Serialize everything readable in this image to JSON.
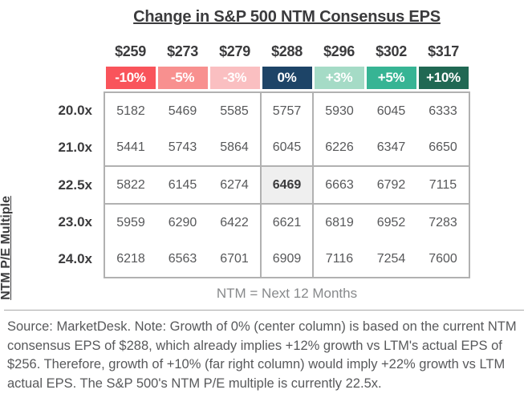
{
  "title": "Change in S&P 500 NTM Consensus EPS",
  "y_axis_label": "NTM P/E Multiple",
  "eps_headers": [
    "$259",
    "$273",
    "$279",
    "$288",
    "$296",
    "$302",
    "$317"
  ],
  "pct_headers": [
    "-10%",
    "-5%",
    "-3%",
    "0%",
    "+3%",
    "+5%",
    "+10%"
  ],
  "pct_colors": [
    "#f9545b",
    "#f8908f",
    "#fabfc1",
    "#1d4467",
    "#a5dbc6",
    "#37b494",
    "#206853"
  ],
  "rows": [
    {
      "label": "20.0x",
      "cells": [
        "5182",
        "5469",
        "5585",
        "5757",
        "5930",
        "6045",
        "6333"
      ]
    },
    {
      "label": "21.0x",
      "cells": [
        "5441",
        "5743",
        "5864",
        "6045",
        "6226",
        "6347",
        "6650"
      ]
    },
    {
      "label": "22.5x",
      "cells": [
        "5822",
        "6145",
        "6274",
        "6469",
        "6663",
        "6792",
        "7115"
      ]
    },
    {
      "label": "23.0x",
      "cells": [
        "5959",
        "6290",
        "6422",
        "6621",
        "6819",
        "6952",
        "7283"
      ]
    },
    {
      "label": "24.0x",
      "cells": [
        "6218",
        "6563",
        "6701",
        "6909",
        "7116",
        "7254",
        "7600"
      ]
    }
  ],
  "footnote": "NTM = Next 12 Months",
  "source_note": "Source: MarketDesk. Note: Growth of 0% (center column) is based on the current NTM consensus EPS of $288, which already implies +12% growth vs LTM's actual EPS of $256. Therefore, growth of +10% (far right column) would imply +22% growth vs LTM actual EPS. The S&P 500's NTM P/E multiple is currently 22.5x.",
  "colors": {
    "text_dark": "#3b3b3d",
    "cell_text": "#57585a",
    "table_border": "#b1b1b1",
    "highlight_cell_bg": "#efefef",
    "footnote_gray": "#87898b",
    "source_gray": "#58595b"
  },
  "chart_data": {
    "type": "heatmap",
    "title": "Change in S&P 500 NTM Consensus EPS",
    "x_axis_eps_levels": [
      "$259",
      "$273",
      "$279",
      "$288",
      "$296",
      "$302",
      "$317"
    ],
    "x_axis_pct_change": [
      "-10%",
      "-5%",
      "-3%",
      "0%",
      "+3%",
      "+5%",
      "+10%"
    ],
    "ylabel": "NTM P/E Multiple",
    "y_categories": [
      "20.0x",
      "21.0x",
      "22.5x",
      "23.0x",
      "24.0x"
    ],
    "values": [
      [
        5182,
        5469,
        5585,
        5757,
        5930,
        6045,
        6333
      ],
      [
        5441,
        5743,
        5864,
        6045,
        6226,
        6347,
        6650
      ],
      [
        5822,
        6145,
        6274,
        6469,
        6663,
        6792,
        7115
      ],
      [
        5959,
        6290,
        6422,
        6621,
        6819,
        6952,
        7283
      ],
      [
        6218,
        6563,
        6701,
        6909,
        7116,
        7254,
        7600
      ]
    ],
    "highlight_cell": {
      "row": "22.5x",
      "column": "0%",
      "value": 6469
    },
    "annotations": [
      "NTM = Next 12 Months"
    ],
    "legend_position": "none",
    "grid": "boxed center column and boxed 22.5x row"
  }
}
